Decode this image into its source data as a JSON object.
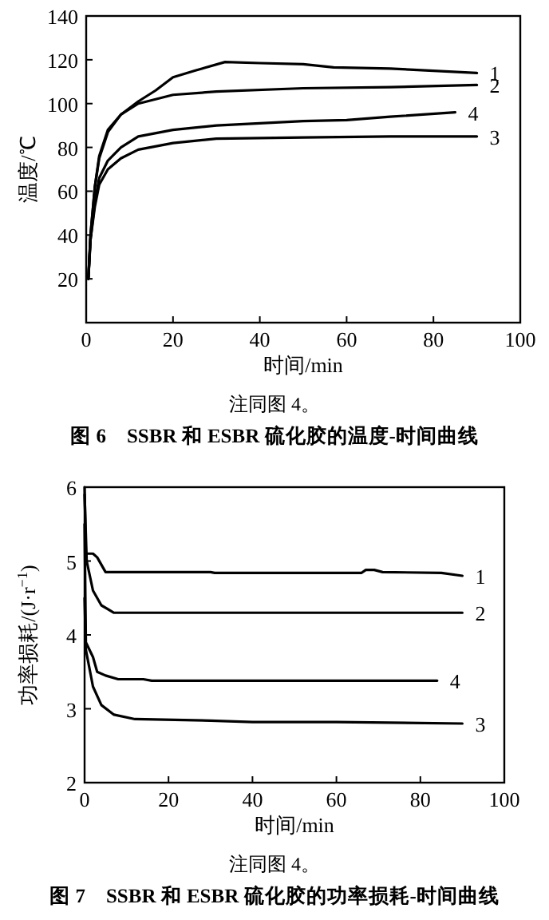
{
  "chart_data": [
    {
      "type": "line",
      "title": "图 6　SSBR 和 ESBR 硫化胶的温度-时间曲线",
      "annotations": [
        "注同图 4。"
      ],
      "xlabel": "时间/min",
      "ylabel": "温度/℃",
      "xlim": [
        0,
        100
      ],
      "xticks": [
        0,
        20,
        40,
        60,
        80,
        100
      ],
      "ylim": [
        0,
        140
      ],
      "yticks": [
        20,
        40,
        60,
        80,
        100,
        120,
        140
      ],
      "series": [
        {
          "name": "1",
          "color": "#000000",
          "x": [
            0.5,
            1,
            2,
            3,
            5,
            8,
            12,
            16,
            20,
            25,
            32,
            40,
            50,
            57,
            70,
            80,
            90
          ],
          "values": [
            20,
            40,
            62,
            75,
            87,
            95,
            101,
            106,
            112,
            115,
            119,
            118.5,
            118,
            116.5,
            116,
            115,
            114
          ]
        },
        {
          "name": "2",
          "color": "#000000",
          "x": [
            0.5,
            1,
            2,
            3,
            5,
            8,
            12,
            16,
            20,
            30,
            50,
            70,
            90
          ],
          "values": [
            20,
            40,
            62,
            76,
            88,
            95,
            100,
            102,
            104,
            105.5,
            107,
            107.5,
            108.5
          ]
        },
        {
          "name": "4",
          "color": "#000000",
          "x": [
            0.5,
            1,
            2,
            3,
            5,
            8,
            12,
            20,
            30,
            50,
            60,
            70,
            85
          ],
          "values": [
            20,
            38,
            55,
            66,
            74,
            80,
            85,
            88,
            90,
            92,
            92.5,
            94,
            96
          ]
        },
        {
          "name": "3",
          "color": "#000000",
          "x": [
            0.5,
            1,
            2,
            3,
            5,
            8,
            12,
            20,
            30,
            50,
            70,
            90
          ],
          "values": [
            20,
            38,
            53,
            63,
            70,
            75,
            79,
            82,
            84,
            84.5,
            85,
            85
          ]
        }
      ]
    },
    {
      "type": "line",
      "title": "图 7　SSBR 和 ESBR 硫化胶的功率损耗-时间曲线",
      "annotations": [
        "注同图 4。"
      ],
      "xlabel": "时间/min",
      "ylabel": "功率损耗/(J·r$^{−1}$)",
      "xlim": [
        0,
        100
      ],
      "xticks": [
        0,
        20,
        40,
        60,
        80,
        100
      ],
      "ylim": [
        2,
        6
      ],
      "yticks": [
        2,
        3,
        4,
        5,
        6
      ],
      "series": [
        {
          "name": "1",
          "color": "#000000",
          "x": [
            0,
            0.3,
            2,
            3,
            5,
            30,
            31,
            66,
            67,
            69,
            71,
            85,
            90
          ],
          "values": [
            6,
            5.1,
            5.1,
            5.05,
            4.85,
            4.85,
            4.84,
            4.84,
            4.88,
            4.88,
            4.85,
            4.84,
            4.8
          ]
        },
        {
          "name": "2",
          "color": "#000000",
          "x": [
            0,
            0.5,
            2,
            4,
            7,
            10,
            90
          ],
          "values": [
            5.9,
            5,
            4.6,
            4.4,
            4.3,
            4.3,
            4.3
          ]
        },
        {
          "name": "4",
          "color": "#000000",
          "x": [
            0,
            0.3,
            2,
            3,
            5,
            8,
            14,
            16,
            84
          ],
          "values": [
            5.5,
            3.9,
            3.7,
            3.5,
            3.45,
            3.4,
            3.4,
            3.38,
            3.38
          ]
        },
        {
          "name": "3",
          "color": "#000000",
          "x": [
            0,
            0.3,
            2,
            4,
            7,
            12,
            30,
            40,
            60,
            90
          ],
          "values": [
            4.5,
            3.8,
            3.3,
            3.05,
            2.92,
            2.86,
            2.84,
            2.82,
            2.82,
            2.8
          ]
        }
      ]
    }
  ]
}
